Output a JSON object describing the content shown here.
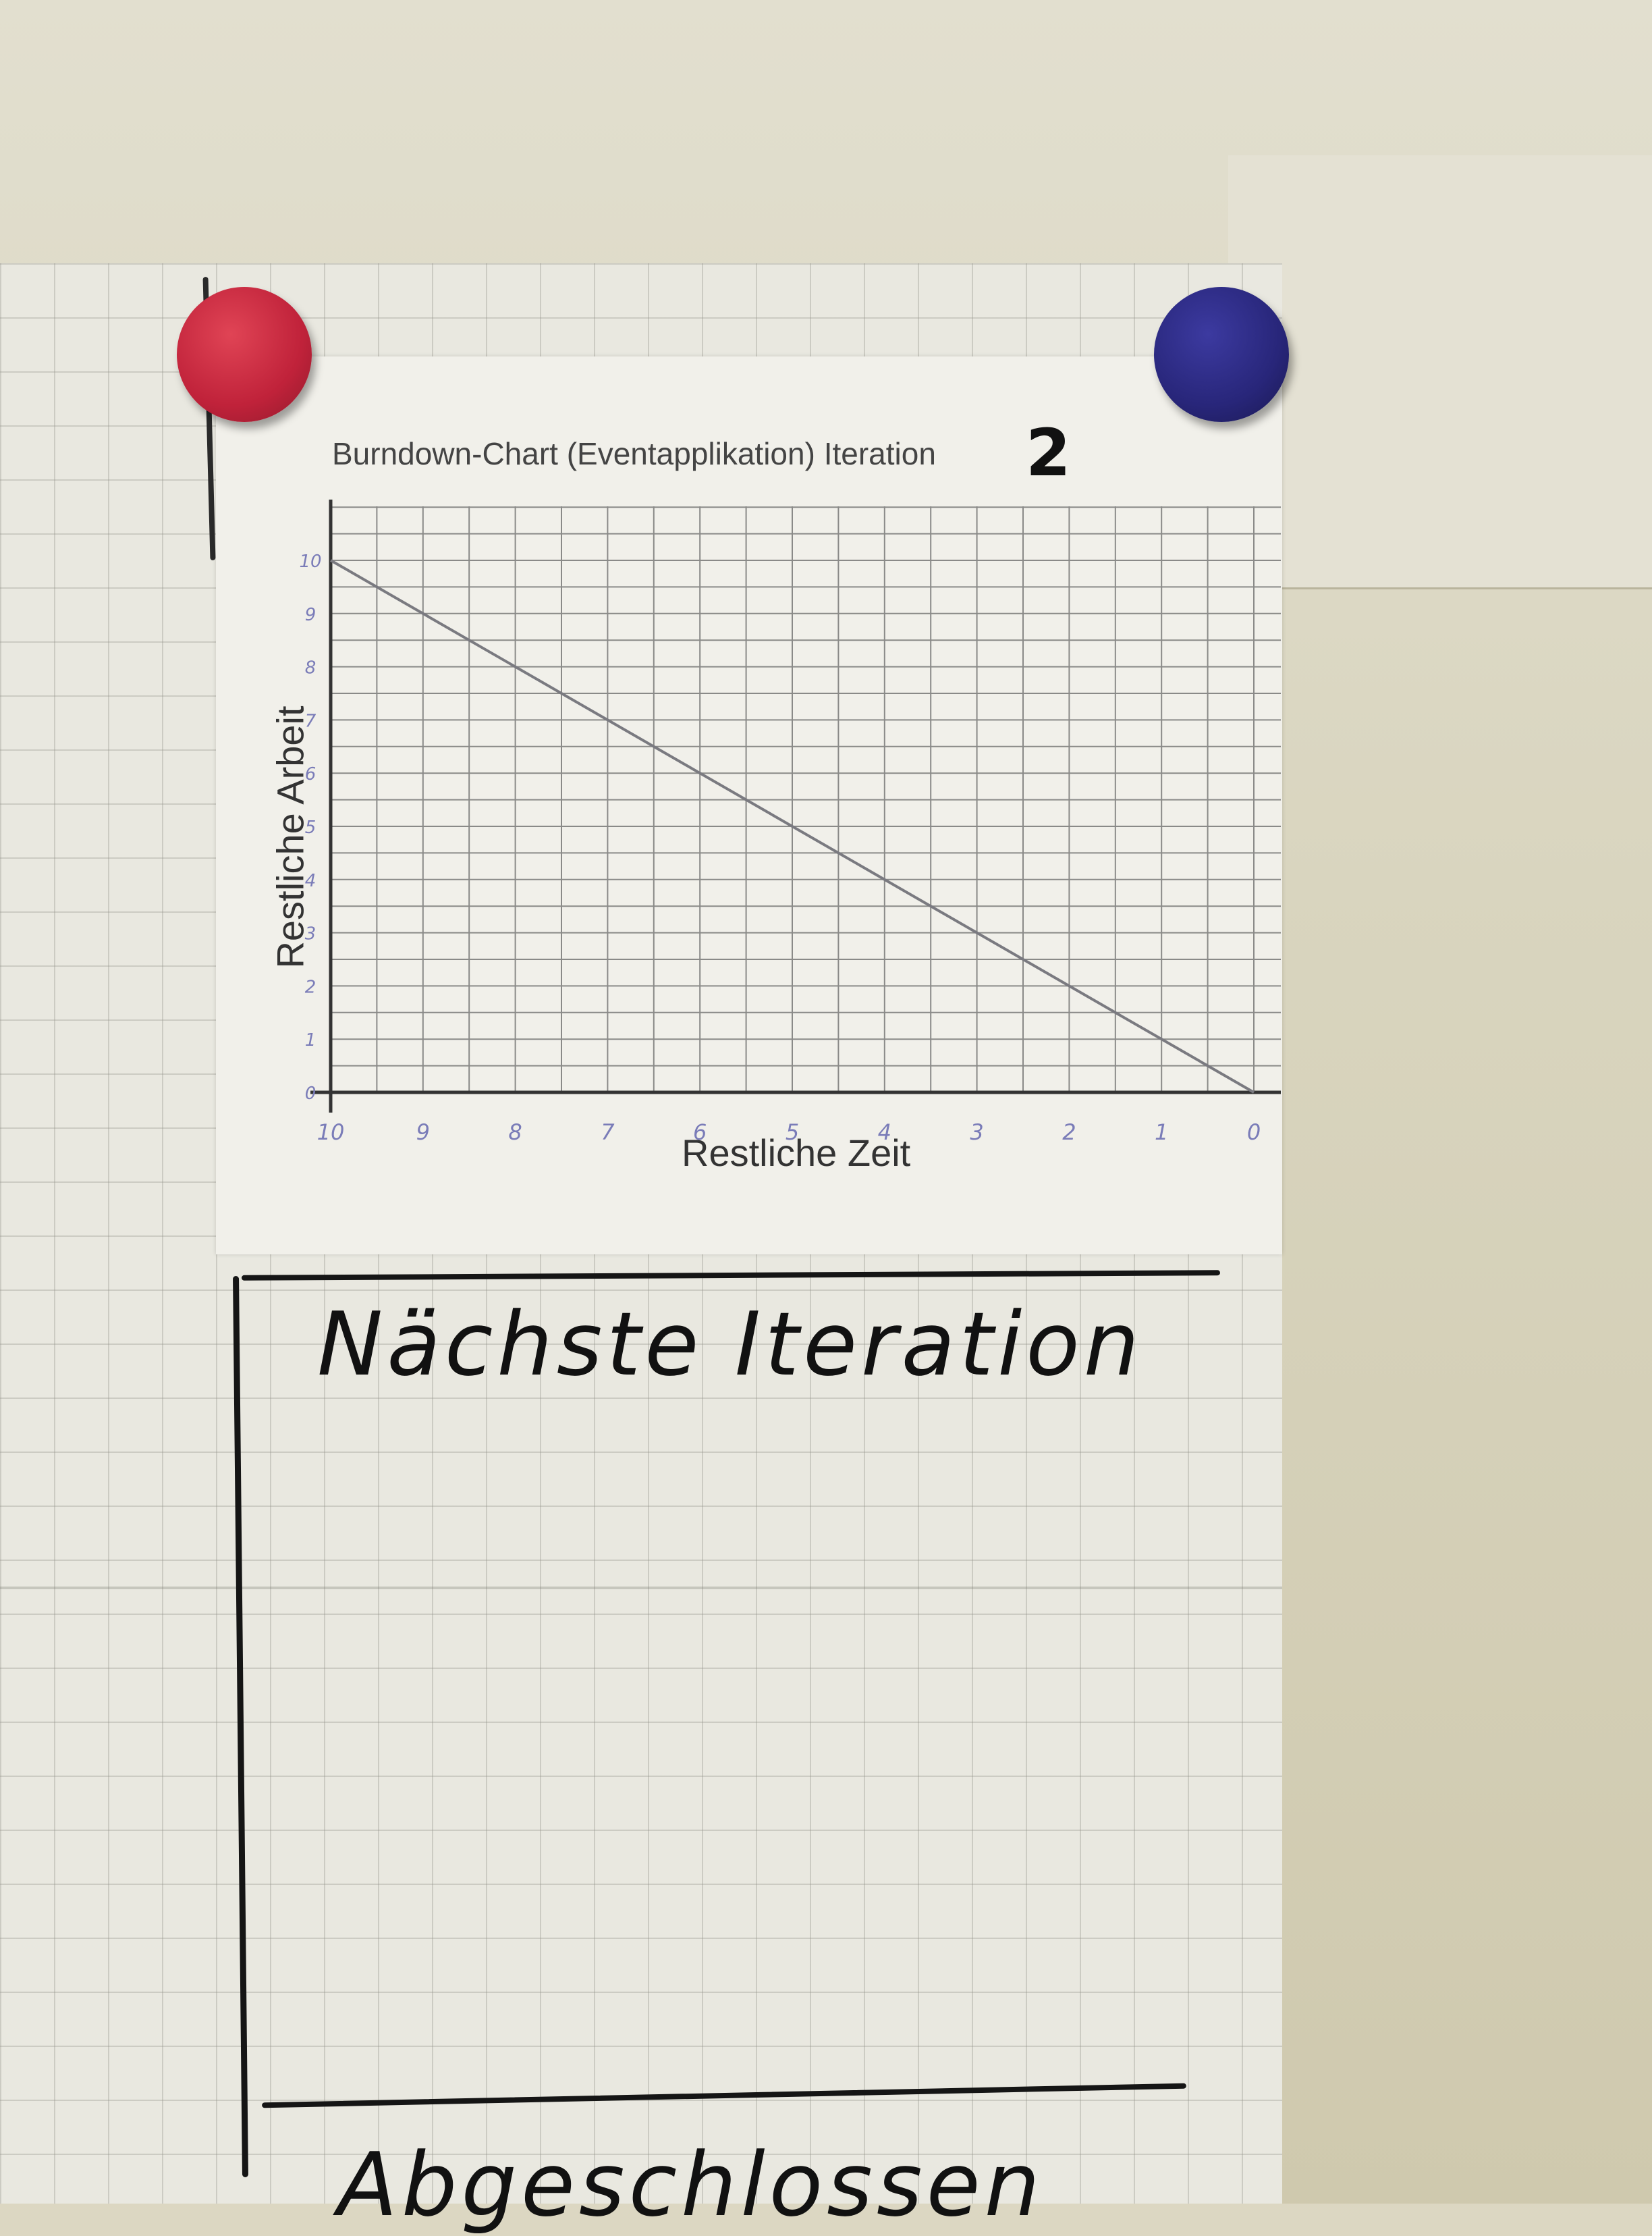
{
  "chart_data": {
    "type": "line",
    "title": "Burndown-Chart (Eventapplikation) Iteration",
    "iteration_number": "2",
    "xlabel": "Restliche Zeit",
    "ylabel": "Restliche Arbeit",
    "x_ticks": [
      "10",
      "9",
      "8",
      "7",
      "6",
      "5",
      "4",
      "3",
      "2",
      "1",
      "0"
    ],
    "y_ticks": [
      "0",
      "1",
      "2",
      "3",
      "4",
      "5",
      "6",
      "7",
      "8",
      "9",
      "10"
    ],
    "xlim": [
      10,
      0
    ],
    "ylim": [
      0,
      10
    ],
    "grid": true,
    "series": [
      {
        "x": [
          10,
          0
        ],
        "y": [
          10,
          0
        ]
      }
    ]
  },
  "board": {
    "sections": [
      {
        "heading": "Nächste Iteration"
      },
      {
        "heading": "Abgeschlossen"
      }
    ]
  },
  "colors": {
    "magnet_left": "#c0223a",
    "magnet_right": "#28267a",
    "ideal_line": "#7a7a80",
    "tick_label": "#7a7cb8"
  }
}
